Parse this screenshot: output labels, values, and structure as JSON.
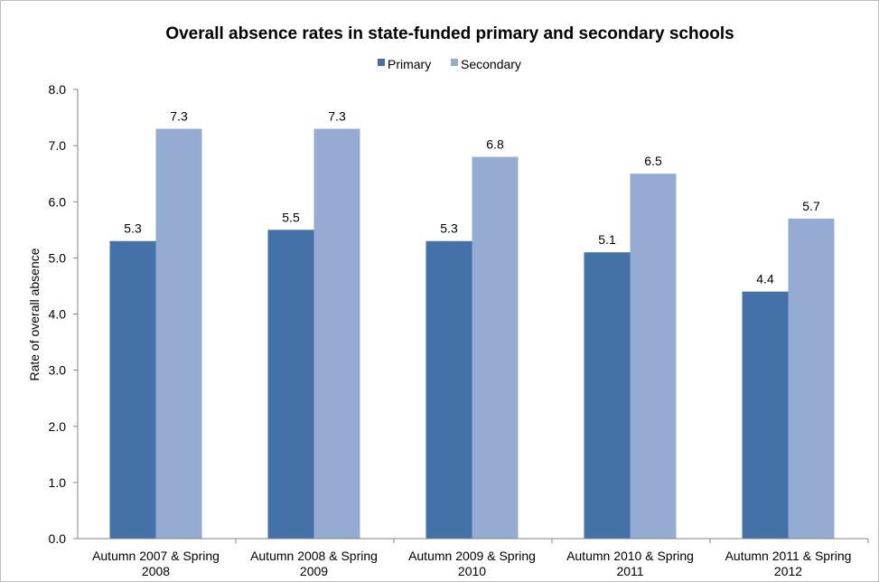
{
  "chart_data": {
    "type": "bar",
    "title": "Overall absence rates in state-funded primary and secondary schools",
    "xlabel": "",
    "ylabel": "Rate of overall absence",
    "ylim": [
      0,
      8
    ],
    "yticks": [
      "0.0",
      "1.0",
      "2.0",
      "3.0",
      "4.0",
      "5.0",
      "6.0",
      "7.0",
      "8.0"
    ],
    "categories": [
      [
        "Autumn 2007 & Spring",
        "2008"
      ],
      [
        "Autumn 2008 & Spring",
        "2009"
      ],
      [
        "Autumn 2009 & Spring",
        "2010"
      ],
      [
        "Autumn 2010 & Spring",
        "2011"
      ],
      [
        "Autumn 2011 & Spring",
        "2012"
      ]
    ],
    "series": [
      {
        "name": "Primary",
        "color": "#4472a8",
        "values": [
          5.3,
          5.5,
          5.3,
          5.1,
          4.4
        ],
        "labels": [
          "5.3",
          "5.5",
          "5.3",
          "5.1",
          "4.4"
        ]
      },
      {
        "name": "Secondary",
        "color": "#95abd3",
        "values": [
          7.3,
          7.3,
          6.8,
          6.5,
          5.7
        ],
        "labels": [
          "7.3",
          "7.3",
          "6.8",
          "6.5",
          "5.7"
        ]
      }
    ],
    "legend": "top-center",
    "grid": false
  }
}
